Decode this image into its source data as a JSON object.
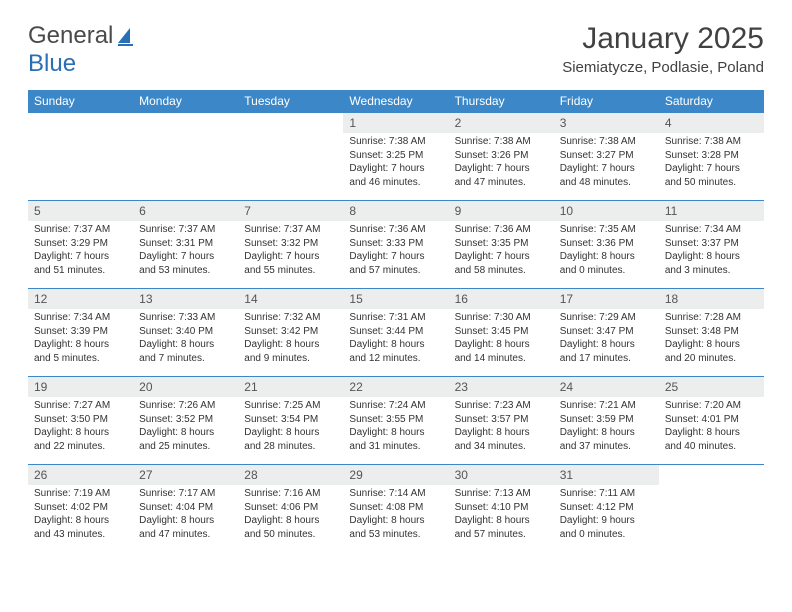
{
  "logo": {
    "text_general": "General",
    "text_blue": "Blue"
  },
  "title": "January 2025",
  "location": "Siemiatycze, Podlasie, Poland",
  "header_bg": "#3b87c8",
  "day_bg": "#eceded",
  "rule_color": "#3b87c8",
  "text_color": "#333333",
  "weekdays": [
    "Sunday",
    "Monday",
    "Tuesday",
    "Wednesday",
    "Thursday",
    "Friday",
    "Saturday"
  ],
  "weeks": [
    [
      null,
      null,
      null,
      {
        "d": "1",
        "sr": "7:38 AM",
        "ss": "3:25 PM",
        "dl": "7 hours and 46 minutes."
      },
      {
        "d": "2",
        "sr": "7:38 AM",
        "ss": "3:26 PM",
        "dl": "7 hours and 47 minutes."
      },
      {
        "d": "3",
        "sr": "7:38 AM",
        "ss": "3:27 PM",
        "dl": "7 hours and 48 minutes."
      },
      {
        "d": "4",
        "sr": "7:38 AM",
        "ss": "3:28 PM",
        "dl": "7 hours and 50 minutes."
      }
    ],
    [
      {
        "d": "5",
        "sr": "7:37 AM",
        "ss": "3:29 PM",
        "dl": "7 hours and 51 minutes."
      },
      {
        "d": "6",
        "sr": "7:37 AM",
        "ss": "3:31 PM",
        "dl": "7 hours and 53 minutes."
      },
      {
        "d": "7",
        "sr": "7:37 AM",
        "ss": "3:32 PM",
        "dl": "7 hours and 55 minutes."
      },
      {
        "d": "8",
        "sr": "7:36 AM",
        "ss": "3:33 PM",
        "dl": "7 hours and 57 minutes."
      },
      {
        "d": "9",
        "sr": "7:36 AM",
        "ss": "3:35 PM",
        "dl": "7 hours and 58 minutes."
      },
      {
        "d": "10",
        "sr": "7:35 AM",
        "ss": "3:36 PM",
        "dl": "8 hours and 0 minutes."
      },
      {
        "d": "11",
        "sr": "7:34 AM",
        "ss": "3:37 PM",
        "dl": "8 hours and 3 minutes."
      }
    ],
    [
      {
        "d": "12",
        "sr": "7:34 AM",
        "ss": "3:39 PM",
        "dl": "8 hours and 5 minutes."
      },
      {
        "d": "13",
        "sr": "7:33 AM",
        "ss": "3:40 PM",
        "dl": "8 hours and 7 minutes."
      },
      {
        "d": "14",
        "sr": "7:32 AM",
        "ss": "3:42 PM",
        "dl": "8 hours and 9 minutes."
      },
      {
        "d": "15",
        "sr": "7:31 AM",
        "ss": "3:44 PM",
        "dl": "8 hours and 12 minutes."
      },
      {
        "d": "16",
        "sr": "7:30 AM",
        "ss": "3:45 PM",
        "dl": "8 hours and 14 minutes."
      },
      {
        "d": "17",
        "sr": "7:29 AM",
        "ss": "3:47 PM",
        "dl": "8 hours and 17 minutes."
      },
      {
        "d": "18",
        "sr": "7:28 AM",
        "ss": "3:48 PM",
        "dl": "8 hours and 20 minutes."
      }
    ],
    [
      {
        "d": "19",
        "sr": "7:27 AM",
        "ss": "3:50 PM",
        "dl": "8 hours and 22 minutes."
      },
      {
        "d": "20",
        "sr": "7:26 AM",
        "ss": "3:52 PM",
        "dl": "8 hours and 25 minutes."
      },
      {
        "d": "21",
        "sr": "7:25 AM",
        "ss": "3:54 PM",
        "dl": "8 hours and 28 minutes."
      },
      {
        "d": "22",
        "sr": "7:24 AM",
        "ss": "3:55 PM",
        "dl": "8 hours and 31 minutes."
      },
      {
        "d": "23",
        "sr": "7:23 AM",
        "ss": "3:57 PM",
        "dl": "8 hours and 34 minutes."
      },
      {
        "d": "24",
        "sr": "7:21 AM",
        "ss": "3:59 PM",
        "dl": "8 hours and 37 minutes."
      },
      {
        "d": "25",
        "sr": "7:20 AM",
        "ss": "4:01 PM",
        "dl": "8 hours and 40 minutes."
      }
    ],
    [
      {
        "d": "26",
        "sr": "7:19 AM",
        "ss": "4:02 PM",
        "dl": "8 hours and 43 minutes."
      },
      {
        "d": "27",
        "sr": "7:17 AM",
        "ss": "4:04 PM",
        "dl": "8 hours and 47 minutes."
      },
      {
        "d": "28",
        "sr": "7:16 AM",
        "ss": "4:06 PM",
        "dl": "8 hours and 50 minutes."
      },
      {
        "d": "29",
        "sr": "7:14 AM",
        "ss": "4:08 PM",
        "dl": "8 hours and 53 minutes."
      },
      {
        "d": "30",
        "sr": "7:13 AM",
        "ss": "4:10 PM",
        "dl": "8 hours and 57 minutes."
      },
      {
        "d": "31",
        "sr": "7:11 AM",
        "ss": "4:12 PM",
        "dl": "9 hours and 0 minutes."
      },
      null
    ]
  ]
}
